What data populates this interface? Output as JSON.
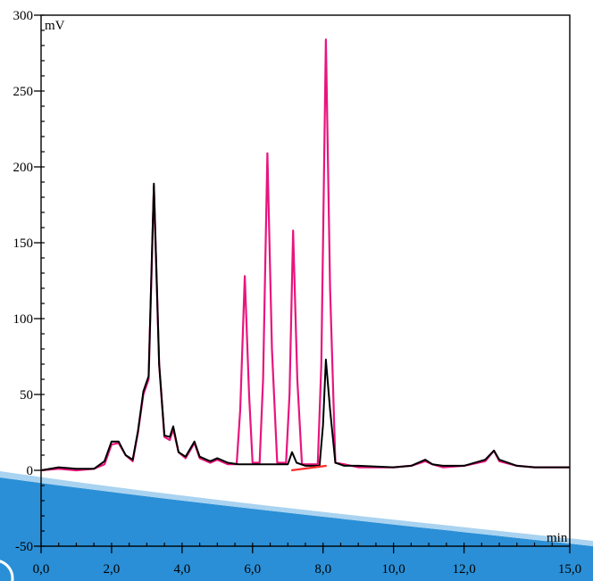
{
  "chart_data": {
    "type": "line",
    "xlabel": "min",
    "ylabel": "mV",
    "xlim": [
      0,
      15
    ],
    "ylim": [
      -50,
      300
    ],
    "x_tick_labels": [
      "0,0",
      "2,0",
      "4,0",
      "6,0",
      "8,0",
      "10,0",
      "12,0",
      "15,0"
    ],
    "x_tick_values": [
      0,
      2,
      4,
      6,
      8,
      10,
      12,
      15
    ],
    "y_tick_labels": [
      "-50",
      "0",
      "50",
      "100",
      "150",
      "200",
      "250",
      "300"
    ],
    "y_tick_values": [
      -50,
      0,
      50,
      100,
      150,
      200,
      250,
      300
    ],
    "grid": false,
    "legend": "none",
    "series": [
      {
        "color": "#e8157d",
        "points": [
          [
            0.0,
            0
          ],
          [
            0.5,
            1
          ],
          [
            1.0,
            0
          ],
          [
            1.5,
            1
          ],
          [
            1.8,
            4
          ],
          [
            2.0,
            17
          ],
          [
            2.2,
            18
          ],
          [
            2.4,
            10
          ],
          [
            2.6,
            6
          ],
          [
            2.75,
            25
          ],
          [
            2.9,
            50
          ],
          [
            3.05,
            60
          ],
          [
            3.2,
            187
          ],
          [
            3.35,
            70
          ],
          [
            3.5,
            22
          ],
          [
            3.65,
            20
          ],
          [
            3.75,
            27
          ],
          [
            3.9,
            12
          ],
          [
            4.1,
            8
          ],
          [
            4.35,
            18
          ],
          [
            4.5,
            8
          ],
          [
            4.8,
            5
          ],
          [
            5.0,
            7
          ],
          [
            5.3,
            4
          ],
          [
            5.55,
            4
          ],
          [
            5.65,
            40
          ],
          [
            5.78,
            128
          ],
          [
            5.9,
            50
          ],
          [
            6.0,
            5
          ],
          [
            6.2,
            5
          ],
          [
            6.3,
            60
          ],
          [
            6.42,
            209
          ],
          [
            6.55,
            80
          ],
          [
            6.7,
            5
          ],
          [
            6.95,
            5
          ],
          [
            7.05,
            50
          ],
          [
            7.15,
            158
          ],
          [
            7.27,
            60
          ],
          [
            7.4,
            4
          ],
          [
            7.85,
            4
          ],
          [
            7.95,
            70
          ],
          [
            8.08,
            284
          ],
          [
            8.2,
            120
          ],
          [
            8.35,
            5
          ],
          [
            8.6,
            4
          ],
          [
            9.0,
            2
          ],
          [
            10.0,
            2
          ],
          [
            10.5,
            3
          ],
          [
            10.9,
            6
          ],
          [
            11.1,
            4
          ],
          [
            11.4,
            2
          ],
          [
            12.0,
            3
          ],
          [
            12.6,
            6
          ],
          [
            12.85,
            13
          ],
          [
            13.0,
            6
          ],
          [
            13.5,
            3
          ],
          [
            14.0,
            2
          ],
          [
            15.0,
            2
          ]
        ]
      },
      {
        "color": "#000000",
        "points": [
          [
            0.0,
            0
          ],
          [
            0.5,
            2
          ],
          [
            1.0,
            1
          ],
          [
            1.5,
            1
          ],
          [
            1.8,
            6
          ],
          [
            2.0,
            19
          ],
          [
            2.2,
            19
          ],
          [
            2.4,
            10
          ],
          [
            2.6,
            7
          ],
          [
            2.75,
            26
          ],
          [
            2.9,
            52
          ],
          [
            3.05,
            62
          ],
          [
            3.2,
            189
          ],
          [
            3.35,
            70
          ],
          [
            3.5,
            23
          ],
          [
            3.65,
            22
          ],
          [
            3.75,
            29
          ],
          [
            3.9,
            12
          ],
          [
            4.1,
            9
          ],
          [
            4.35,
            19
          ],
          [
            4.5,
            9
          ],
          [
            4.8,
            6
          ],
          [
            5.0,
            8
          ],
          [
            5.3,
            5
          ],
          [
            5.6,
            4
          ],
          [
            6.0,
            4
          ],
          [
            6.5,
            4
          ],
          [
            7.0,
            4
          ],
          [
            7.12,
            12
          ],
          [
            7.25,
            5
          ],
          [
            7.5,
            3
          ],
          [
            7.9,
            3
          ],
          [
            8.0,
            30
          ],
          [
            8.08,
            73
          ],
          [
            8.2,
            40
          ],
          [
            8.35,
            5
          ],
          [
            8.6,
            3
          ],
          [
            9.0,
            3
          ],
          [
            10.0,
            2
          ],
          [
            10.5,
            3
          ],
          [
            10.9,
            7
          ],
          [
            11.1,
            4
          ],
          [
            11.4,
            3
          ],
          [
            12.0,
            3
          ],
          [
            12.6,
            7
          ],
          [
            12.85,
            13
          ],
          [
            13.0,
            7
          ],
          [
            13.5,
            3
          ],
          [
            14.0,
            2
          ],
          [
            15.0,
            2
          ]
        ]
      },
      {
        "color": "#ff2a2a",
        "points": [
          [
            7.1,
            0
          ],
          [
            8.1,
            3
          ]
        ]
      }
    ]
  }
}
